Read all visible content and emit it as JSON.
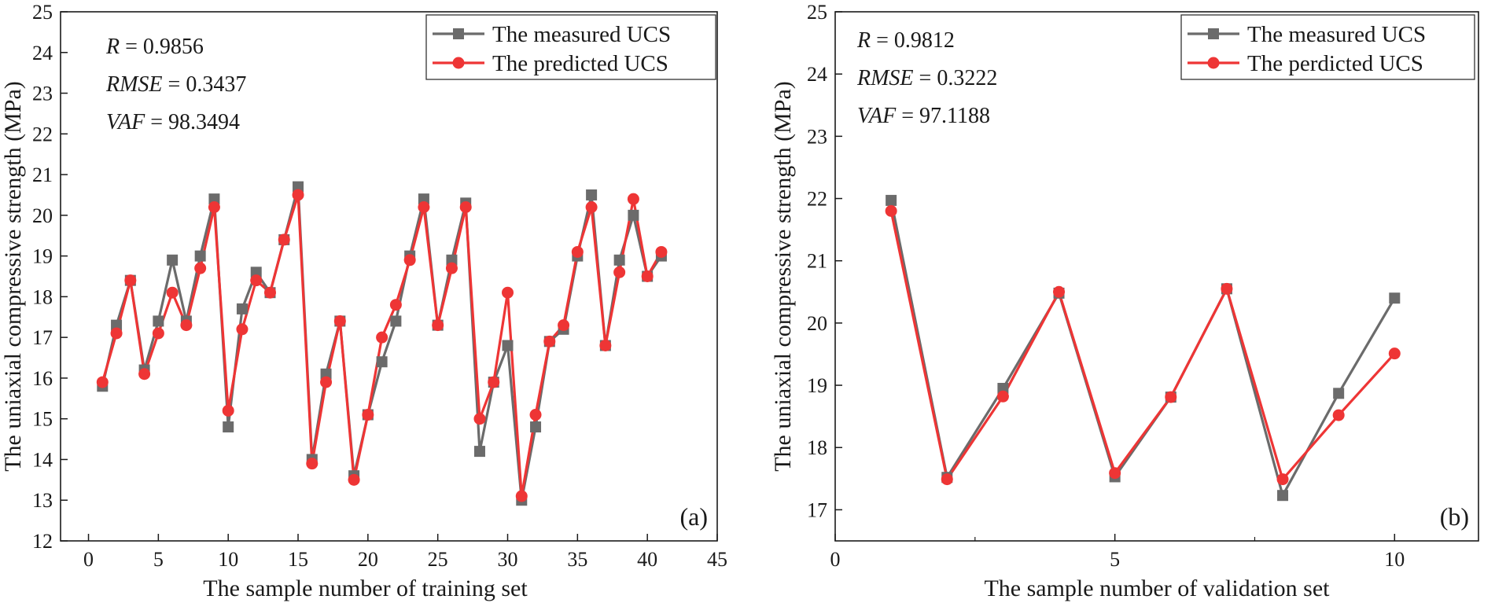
{
  "colors": {
    "measured": "#6b6b6b",
    "predicted": "#ee3535",
    "axis": "#1a1a1a"
  },
  "chart_data": [
    {
      "type": "line",
      "panel_label": "(a)",
      "xlabel": "The sample number of training set",
      "ylabel": "The uniaxial compressive strength (MPa)",
      "xlim": [
        -2,
        45
      ],
      "ylim": [
        12,
        25
      ],
      "xticks": [
        0,
        5,
        10,
        15,
        20,
        25,
        30,
        35,
        40,
        45
      ],
      "yticks": [
        12,
        13,
        14,
        15,
        16,
        17,
        18,
        19,
        20,
        21,
        22,
        23,
        24,
        25
      ],
      "stats": [
        {
          "name": "R",
          "eq": " = 0.9856"
        },
        {
          "name": "RMSE",
          "eq": " = 0.3437"
        },
        {
          "name": "VAF",
          "eq": " = 98.3494"
        }
      ],
      "legend": [
        "The measured UCS",
        "The predicted UCS"
      ],
      "x": [
        1,
        2,
        3,
        4,
        5,
        6,
        7,
        8,
        9,
        10,
        11,
        12,
        13,
        14,
        15,
        16,
        17,
        18,
        19,
        20,
        21,
        22,
        23,
        24,
        25,
        26,
        27,
        28,
        29,
        30,
        31,
        32,
        33,
        34,
        35,
        36,
        37,
        38,
        39,
        40,
        41
      ],
      "series": [
        {
          "name": "The measured UCS",
          "marker": "square",
          "values": [
            15.8,
            17.3,
            18.4,
            16.2,
            17.4,
            18.9,
            17.4,
            19.0,
            20.4,
            14.8,
            17.7,
            18.6,
            18.1,
            19.4,
            20.7,
            14.0,
            16.1,
            17.4,
            13.6,
            15.1,
            16.4,
            17.4,
            19.0,
            20.4,
            17.3,
            18.9,
            20.3,
            14.2,
            15.9,
            16.8,
            13.0,
            14.8,
            16.9,
            17.2,
            19.0,
            20.5,
            16.8,
            18.9,
            20.0,
            18.5,
            19.0
          ]
        },
        {
          "name": "The predicted UCS",
          "marker": "circle",
          "values": [
            15.9,
            17.1,
            18.4,
            16.1,
            17.1,
            18.1,
            17.3,
            18.7,
            20.2,
            15.2,
            17.2,
            18.4,
            18.1,
            19.4,
            20.5,
            13.9,
            15.9,
            17.4,
            13.5,
            15.1,
            17.0,
            17.8,
            18.9,
            20.2,
            17.3,
            18.7,
            20.2,
            15.0,
            15.9,
            18.1,
            13.1,
            15.1,
            16.9,
            17.3,
            19.1,
            20.2,
            16.8,
            18.6,
            20.4,
            18.5,
            19.1
          ]
        }
      ]
    },
    {
      "type": "line",
      "panel_label": "(b)",
      "xlabel": "The sample number of validation set",
      "ylabel": "The uniaxial compressive strength (MPa)",
      "xlim": [
        0,
        11.5
      ],
      "ylim": [
        16.5,
        25
      ],
      "xticks": [
        0,
        5,
        10
      ],
      "xminor": [
        2.5,
        7.5
      ],
      "yticks": [
        17,
        18,
        19,
        20,
        21,
        22,
        23,
        24,
        25
      ],
      "stats": [
        {
          "name": "R",
          "eq": " = 0.9812"
        },
        {
          "name": "RMSE",
          "eq": " = 0.3222"
        },
        {
          "name": "VAF",
          "eq": " = 97.1188"
        }
      ],
      "legend": [
        "The measured UCS",
        "The perdicted UCS"
      ],
      "x": [
        1,
        2,
        3,
        4,
        5,
        6,
        7,
        8,
        9,
        10
      ],
      "series": [
        {
          "name": "The measured UCS",
          "marker": "square",
          "values": [
            21.97,
            17.52,
            18.95,
            20.48,
            17.53,
            18.81,
            20.55,
            17.23,
            18.87,
            20.4
          ]
        },
        {
          "name": "The perdicted UCS",
          "marker": "circle",
          "values": [
            21.8,
            17.49,
            18.82,
            20.5,
            17.59,
            18.81,
            20.55,
            17.49,
            18.52,
            19.51
          ]
        }
      ]
    }
  ]
}
